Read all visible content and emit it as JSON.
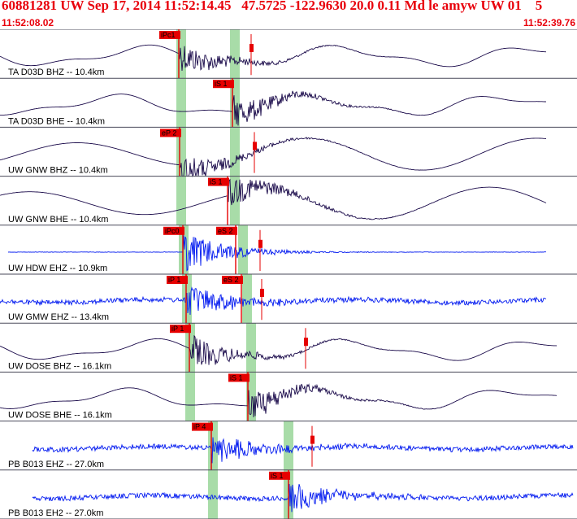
{
  "header": {
    "title": "60881281 UW Sep 17, 2014 11:52:14.45   47.5725 -122.9630 20.0 0.11 Md le amyw UW 01    5",
    "start_time": "11:52:08.02",
    "end_time": "11:52:39.76"
  },
  "colors": {
    "header_text": "#e8000b",
    "trace_dark": "#1a0a4a",
    "trace_blue": "#0018f0",
    "pick_red": "#e60000",
    "window_green": "#a8dca8",
    "divider": "#4a4a5a"
  },
  "traces": [
    {
      "label": "TA D03D BHZ -- 10.4km",
      "color": "dark",
      "style": "long",
      "green": [
        223,
        289
      ],
      "picks": [
        {
          "label": "iPc1",
          "t": 220
        },
        {
          "label": "",
          "t": 309,
          "marker": true
        }
      ]
    },
    {
      "label": "TA D03D BHE -- 10.4km",
      "color": "dark",
      "style": "long",
      "green": [
        223,
        289
      ],
      "picks": [
        {
          "label": "iS 1",
          "t": 286
        }
      ]
    },
    {
      "label": "UW GNW BHZ -- 10.4km",
      "color": "dark",
      "style": "wave",
      "green": [
        223,
        289
      ],
      "picks": [
        {
          "label": "eP 2",
          "t": 221
        },
        {
          "label": "",
          "t": 313,
          "marker": true
        }
      ]
    },
    {
      "label": "UW GNW BHE -- 10.4km",
      "color": "dark",
      "style": "wave",
      "green": [
        223,
        289
      ],
      "picks": [
        {
          "label": "iS 1",
          "t": 280
        }
      ]
    },
    {
      "label": "UW HDW EHZ -- 10.9km",
      "color": "blue",
      "style": "quiet",
      "green": [
        226,
        299
      ],
      "picks": [
        {
          "label": "iPc0",
          "t": 225
        },
        {
          "label": "eS 2",
          "t": 290
        },
        {
          "label": "",
          "t": 320,
          "marker": true
        }
      ]
    },
    {
      "label": "UW GMW EHZ -- 13.4km",
      "color": "blue",
      "style": "noisy",
      "green": [
        230,
        304
      ],
      "picks": [
        {
          "label": "iP 1",
          "t": 229
        },
        {
          "label": "eS 2",
          "t": 297
        },
        {
          "label": "",
          "t": 322,
          "marker": true
        }
      ]
    },
    {
      "label": "UW DOSE BHZ -- 16.1km",
      "color": "dark",
      "style": "long",
      "green": [
        234,
        309
      ],
      "picks": [
        {
          "label": "iP 1",
          "t": 233
        },
        {
          "label": "",
          "t": 376,
          "marker": true
        }
      ]
    },
    {
      "label": "UW DOSE BHE -- 16.1km",
      "color": "dark",
      "style": "long",
      "green": [
        234,
        309
      ],
      "picks": [
        {
          "label": "iS 1",
          "t": 305
        }
      ]
    },
    {
      "label": "PB B013 EHZ -- 27.0km",
      "color": "blue",
      "style": "noisy",
      "green": [
        262,
        355
      ],
      "picks": [
        {
          "label": "iP 4",
          "t": 260
        },
        {
          "label": "",
          "t": 384,
          "marker": true
        }
      ]
    },
    {
      "label": "PB B013 EH2 -- 27.0km",
      "color": "blue",
      "style": "noisy",
      "green": [
        262,
        355
      ],
      "picks": [
        {
          "label": "iS 1",
          "t": 355
        }
      ]
    }
  ]
}
